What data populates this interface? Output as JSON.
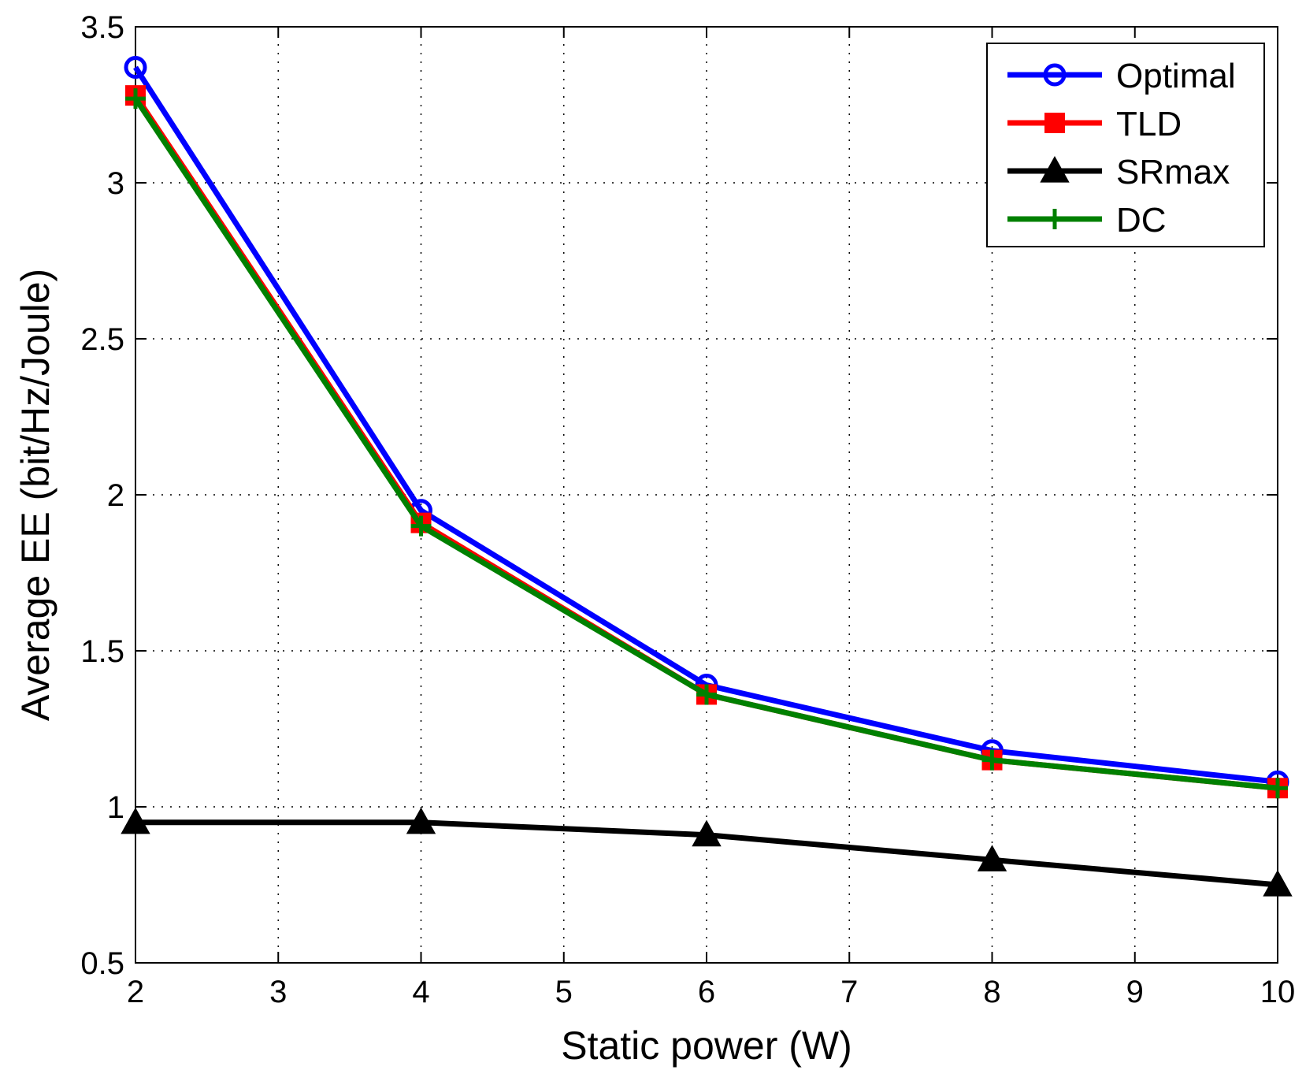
{
  "chart_data": {
    "type": "line",
    "title": "",
    "xlabel": "Static power (W)",
    "ylabel": "Average EE (bit/Hz/Joule)",
    "xlim": [
      2,
      10
    ],
    "ylim": [
      0.5,
      3.5
    ],
    "xticks": [
      2,
      3,
      4,
      5,
      6,
      7,
      8,
      9,
      10
    ],
    "yticks": [
      0.5,
      1,
      1.5,
      2,
      2.5,
      3,
      3.5
    ],
    "xtick_labels": [
      "2",
      "3",
      "4",
      "5",
      "6",
      "7",
      "8",
      "9",
      "10"
    ],
    "ytick_labels": [
      "0.5",
      "1",
      "1.5",
      "2",
      "2.5",
      "3",
      "3.5"
    ],
    "grid": true,
    "legend_position": "top-right",
    "x": [
      2,
      4,
      6,
      8,
      10
    ],
    "series": [
      {
        "name": "Optimal",
        "values": [
          3.37,
          1.95,
          1.39,
          1.18,
          1.08
        ],
        "color": "#0000ff",
        "marker": "circle"
      },
      {
        "name": "TLD",
        "values": [
          3.28,
          1.91,
          1.36,
          1.15,
          1.06
        ],
        "color": "#ff0000",
        "marker": "square"
      },
      {
        "name": "SRmax",
        "values": [
          0.95,
          0.95,
          0.91,
          0.83,
          0.75
        ],
        "color": "#000000",
        "marker": "triangle"
      },
      {
        "name": "DC",
        "values": [
          3.27,
          1.9,
          1.36,
          1.15,
          1.06
        ],
        "color": "#008000",
        "marker": "plus"
      }
    ]
  }
}
